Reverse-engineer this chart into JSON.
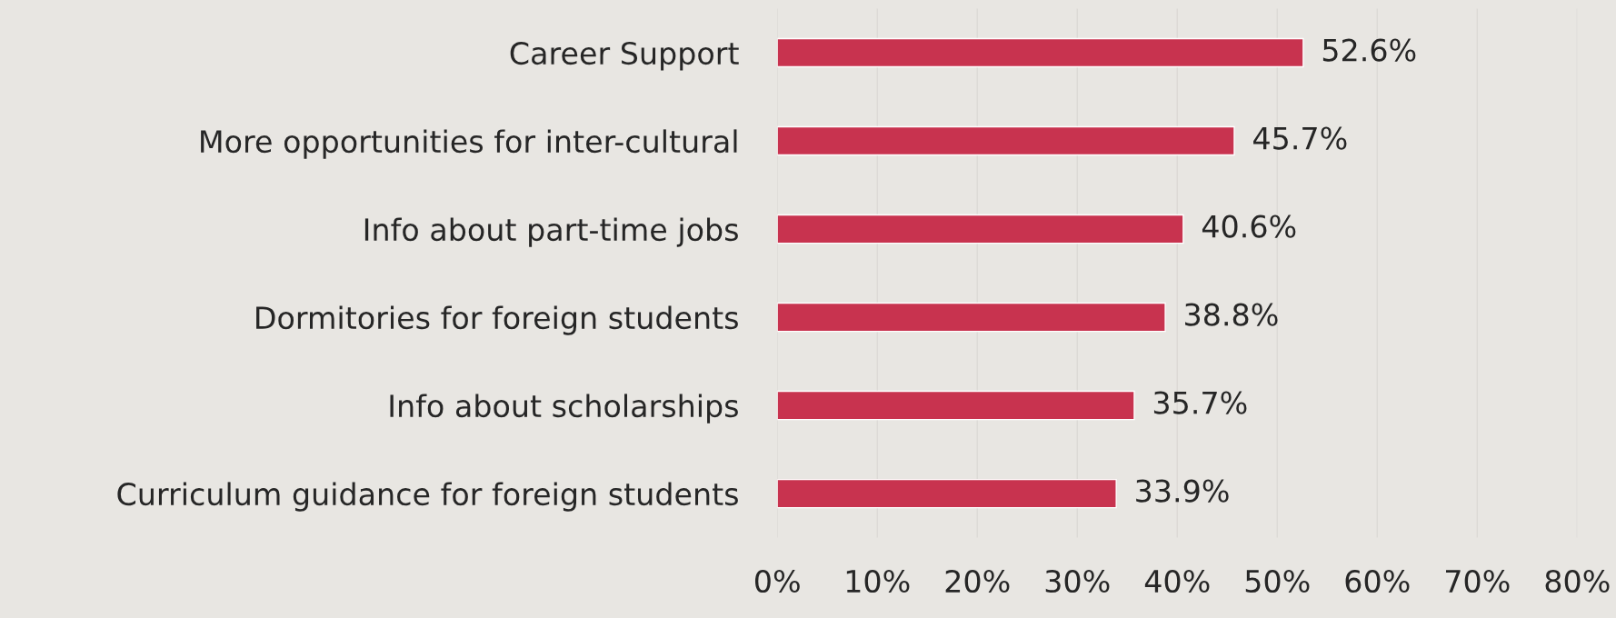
{
  "chart_data": {
    "type": "bar",
    "orientation": "horizontal",
    "categories": [
      "Career Support",
      "More opportunities for inter-cultural",
      "Info about part-time jobs",
      "Dormitories for foreign students",
      "Info about scholarships",
      "Curriculum guidance for foreign students"
    ],
    "values": [
      52.6,
      45.7,
      40.6,
      38.8,
      35.7,
      33.9
    ],
    "value_labels": [
      "52.6%",
      "45.7%",
      "40.6%",
      "38.8%",
      "35.7%",
      "33.9%"
    ],
    "color": "#c8334f",
    "xlim": [
      0,
      80
    ],
    "xticks": [
      {
        "value": 0,
        "label": "0%"
      },
      {
        "value": 10,
        "label": "10%"
      },
      {
        "value": 20,
        "label": "20%"
      },
      {
        "value": 30,
        "label": "30%"
      },
      {
        "value": 40,
        "label": "40%"
      },
      {
        "value": 50,
        "label": "50%"
      },
      {
        "value": 60,
        "label": "60%"
      },
      {
        "value": 70,
        "label": "70%"
      },
      {
        "value": 80,
        "label": "80%"
      }
    ],
    "grid": "x"
  }
}
